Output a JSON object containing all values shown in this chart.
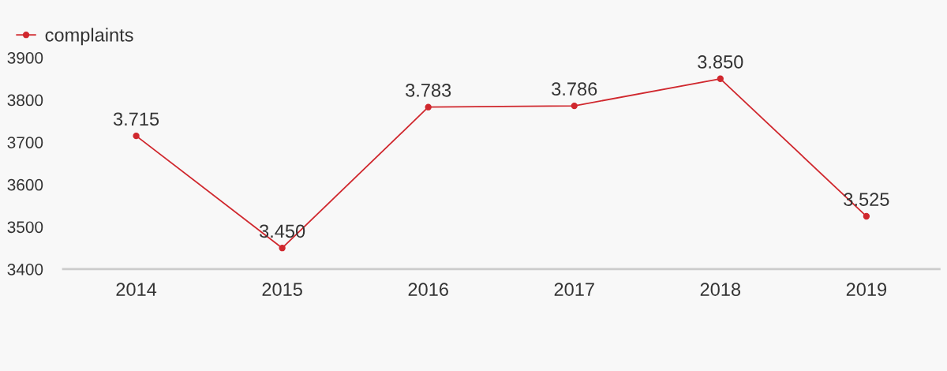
{
  "chart_data": {
    "type": "line",
    "categories": [
      "2014",
      "2015",
      "2016",
      "2017",
      "2018",
      "2019"
    ],
    "series": [
      {
        "name": "complaints",
        "color": "#d0282e",
        "values": [
          3715,
          3450,
          3783,
          3786,
          3850,
          3525
        ],
        "value_labels": [
          "3.715",
          "3.450",
          "3.783",
          "3.786",
          "3.850",
          "3.525"
        ]
      }
    ],
    "ylim": [
      3400,
      3900
    ],
    "yticks": [
      3400,
      3500,
      3600,
      3700,
      3800,
      3900
    ],
    "grid": false,
    "legend": "top left",
    "marker": "circle",
    "line_style": "solid"
  }
}
